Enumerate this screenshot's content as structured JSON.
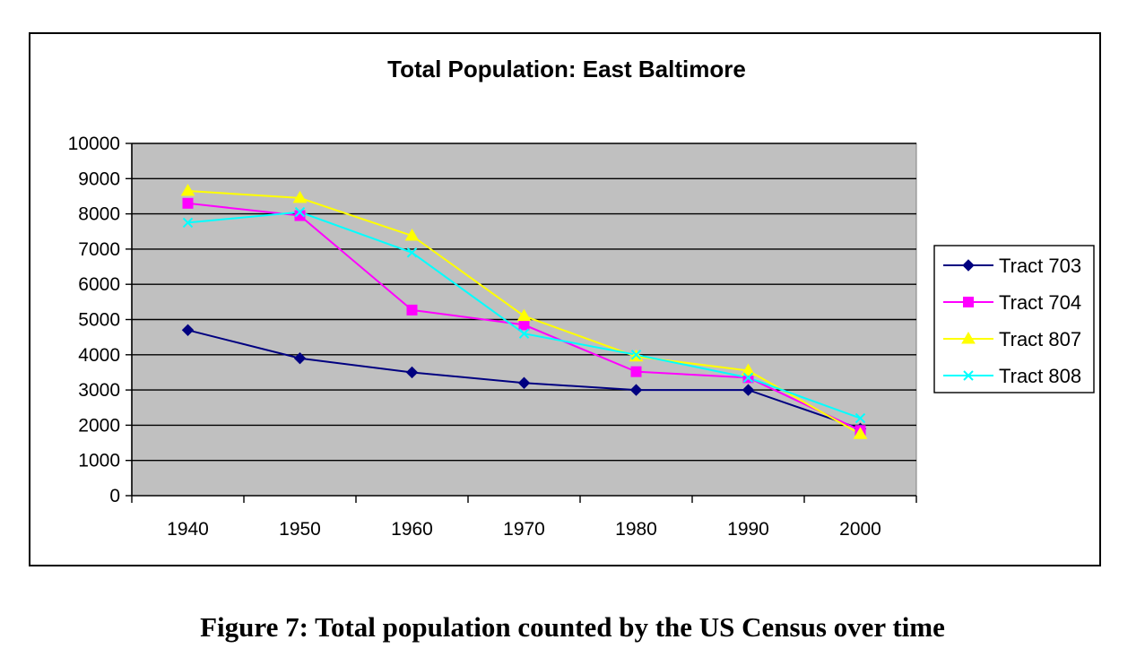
{
  "caption": "Figure 7: Total population counted by the US Census over time",
  "chart_data": {
    "type": "line",
    "title": "Total Population: East Baltimore",
    "xlabel": "",
    "ylabel": "",
    "categories": [
      "1940",
      "1950",
      "1960",
      "1970",
      "1980",
      "1990",
      "2000"
    ],
    "ylim": [
      0,
      10000
    ],
    "yticks": [
      0,
      1000,
      2000,
      3000,
      4000,
      5000,
      6000,
      7000,
      8000,
      9000,
      10000
    ],
    "grid": true,
    "legend_position": "right",
    "plot_background": "#c0c0c0",
    "series": [
      {
        "name": "Tract 703",
        "color": "#000080",
        "marker": "diamond",
        "values": [
          4700,
          3900,
          3500,
          3200,
          3000,
          3000,
          1900
        ]
      },
      {
        "name": "Tract 704",
        "color": "#ff00ff",
        "marker": "square",
        "values": [
          8300,
          7950,
          5270,
          4850,
          3520,
          3350,
          1850
        ]
      },
      {
        "name": "Tract 807",
        "color": "#ffff00",
        "marker": "triangle",
        "values": [
          8650,
          8450,
          7380,
          5100,
          3950,
          3550,
          1750
        ]
      },
      {
        "name": "Tract 808",
        "color": "#00ffff",
        "marker": "x",
        "values": [
          7750,
          8050,
          6900,
          4600,
          4000,
          3350,
          2200
        ]
      }
    ]
  }
}
